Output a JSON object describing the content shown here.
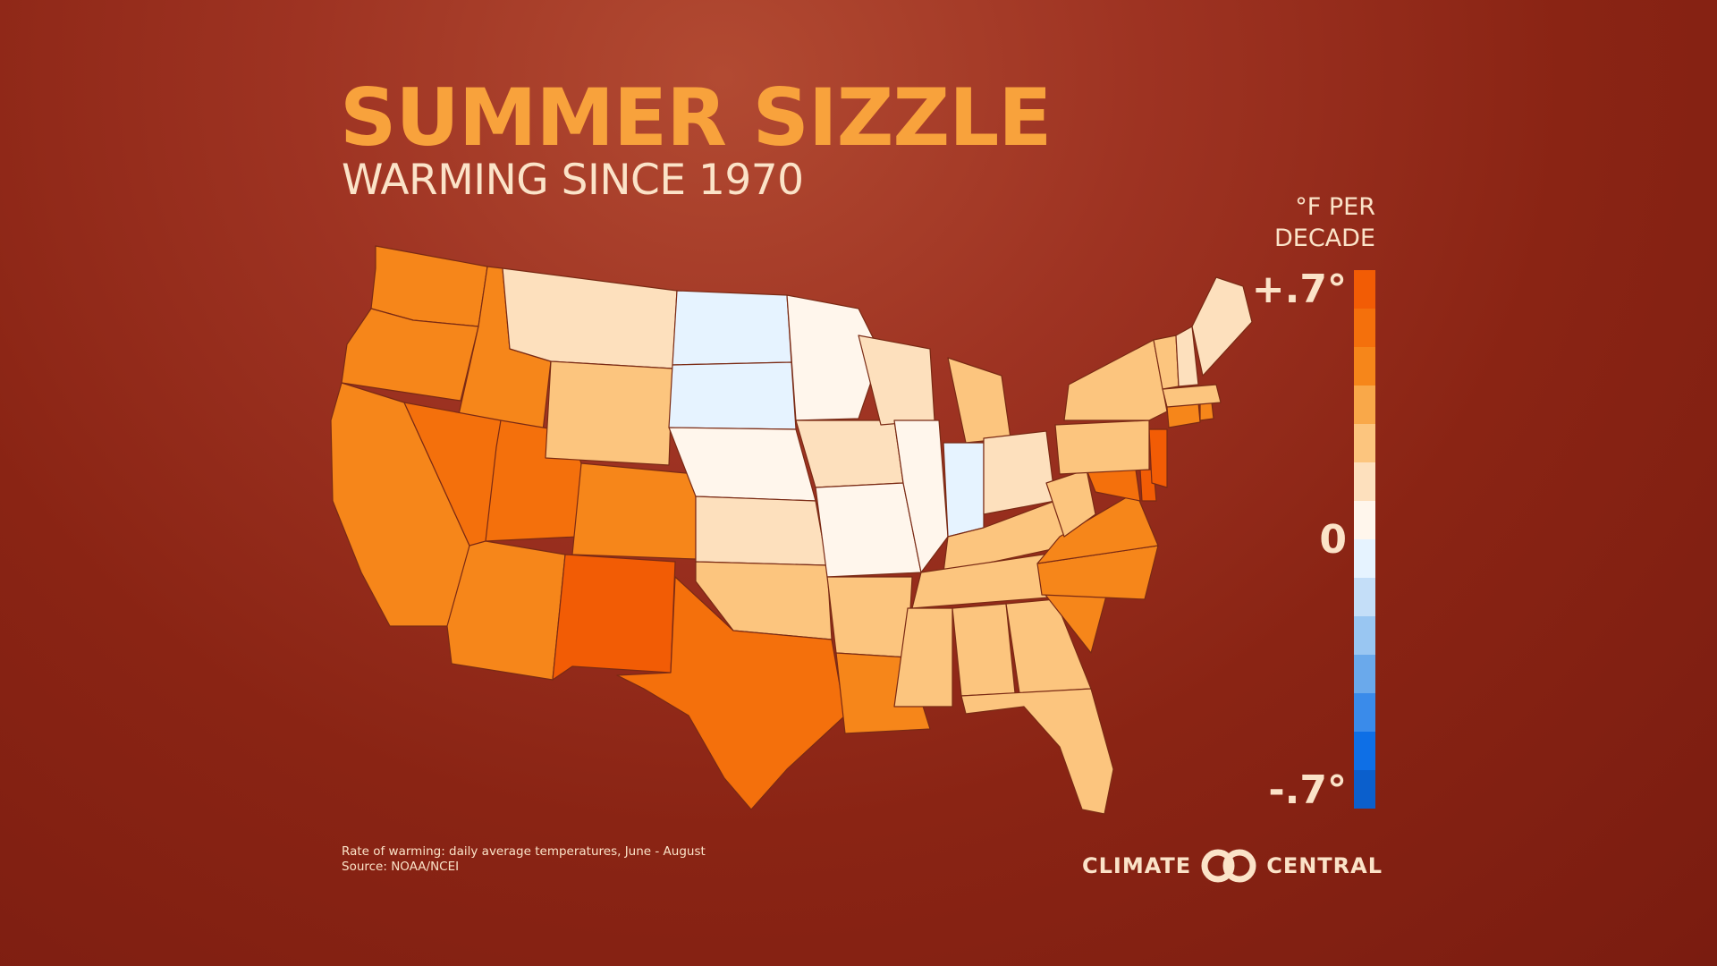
{
  "title": "SUMMER SIZZLE",
  "subtitle": "WARMING SINCE 1970",
  "legend": {
    "unit_line1": "°F PER",
    "unit_line2": "DECADE",
    "max_label": "+.7°",
    "zero_label": "0",
    "min_label": "-.7°",
    "colors": [
      "#f25c05",
      "#f4700c",
      "#f6861a",
      "#f9a849",
      "#fcc57e",
      "#fde0bd",
      "#fff6ec",
      "#e6f3ff",
      "#c4def8",
      "#99c6f2",
      "#6aa9eb",
      "#3a8bea",
      "#0e6fe6",
      "#0b5fcc"
    ]
  },
  "footnote": {
    "line1": "Rate of warming: daily average temperatures, June - August",
    "line2": "Source: NOAA/NCEI"
  },
  "logo": {
    "left": "CLIMATE",
    "right": "CENTRAL",
    "icon": "climate-central-rings-icon"
  },
  "map_data": {
    "type": "choropleth",
    "state_values": {
      "WA": 0.5,
      "OR": 0.5,
      "CA": 0.5,
      "ID": 0.5,
      "NV": 0.6,
      "UT": 0.6,
      "AZ": 0.5,
      "MT": 0.2,
      "WY": 0.3,
      "CO": 0.5,
      "NM": 0.7,
      "ND": -0.1,
      "SD": -0.1,
      "NE": 0.05,
      "KS": 0.15,
      "OK": 0.3,
      "TX": 0.6,
      "MN": 0.1,
      "IA": 0.15,
      "MO": 0.1,
      "AR": 0.3,
      "LA": 0.5,
      "WI": 0.2,
      "IL": 0.1,
      "MI": 0.3,
      "IN": -0.1,
      "OH": 0.2,
      "KY": 0.3,
      "TN": 0.3,
      "MS": 0.3,
      "AL": 0.3,
      "GA": 0.3,
      "FL": 0.3,
      "SC": 0.5,
      "NC": 0.5,
      "VA": 0.5,
      "WV": 0.3,
      "MD": 0.6,
      "DE": 0.7,
      "NJ": 0.7,
      "PA": 0.3,
      "NY": 0.3,
      "CT": 0.5,
      "RI": 0.5,
      "MA": 0.3,
      "VT": 0.3,
      "NH": 0.2,
      "ME": 0.2
    }
  }
}
